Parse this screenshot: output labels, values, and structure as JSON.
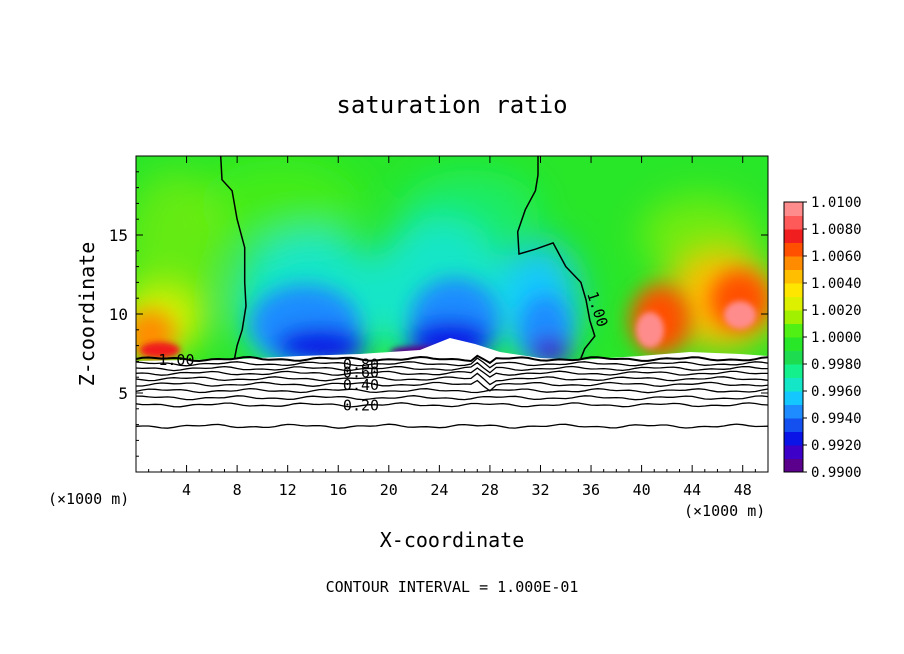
{
  "chart_data": {
    "type": "heatmap",
    "title": "saturation ratio",
    "xlabel": "X-coordinate",
    "ylabel": "Z-coordinate",
    "x_unit_left": "(×1000 m)",
    "x_unit_right": "(×1000 m)",
    "footer": "CONTOUR INTERVAL = 1.000E-01",
    "xlim": [
      0,
      50
    ],
    "ylim": [
      0,
      20
    ],
    "x_ticks": [
      4,
      8,
      12,
      16,
      20,
      24,
      28,
      32,
      36,
      40,
      44,
      48
    ],
    "y_ticks": [
      5,
      10,
      15
    ],
    "colorbar": {
      "range": [
        0.99,
        1.01
      ],
      "levels": [
        0.99,
        0.991,
        0.992,
        0.993,
        0.994,
        0.995,
        0.996,
        0.997,
        0.998,
        0.999,
        1.0,
        1.001,
        1.002,
        1.003,
        1.004,
        1.005,
        1.006,
        1.007,
        1.008,
        1.009,
        1.01
      ],
      "labels": [
        "0.9900",
        "0.9920",
        "0.9940",
        "0.9960",
        "0.9980",
        "1.0000",
        "1.0020",
        "1.0040",
        "1.0060",
        "1.0080",
        "1.0100"
      ],
      "colors": [
        "#5a008c",
        "#3c00c8",
        "#0a14e6",
        "#1450f0",
        "#1e8cff",
        "#14c8ff",
        "#14e6c8",
        "#14f08c",
        "#1edc50",
        "#28e628",
        "#50f014",
        "#a0f000",
        "#dcf000",
        "#ffe600",
        "#ffbe00",
        "#ff8c00",
        "#ff5000",
        "#f01e1e",
        "#ff5a5a",
        "#ff8c8c"
      ]
    },
    "contour_labels": [
      {
        "text": "1.00",
        "x": 3.2,
        "z": 7.1
      },
      {
        "text": "0.80",
        "x": 17.8,
        "z": 6.8
      },
      {
        "text": "0.60",
        "x": 17.8,
        "z": 6.3
      },
      {
        "text": "0.40",
        "x": 17.8,
        "z": 5.5
      },
      {
        "text": "0.20",
        "x": 17.8,
        "z": 4.2
      },
      {
        "text": "1.00",
        "x": 36.5,
        "z": 10.3
      }
    ],
    "contour_lines": [
      {
        "level": 1.0,
        "points": [
          [
            6.7,
            20
          ],
          [
            6.8,
            18.5
          ],
          [
            7.6,
            17.8
          ],
          [
            8.0,
            16.0
          ],
          [
            8.6,
            14.2
          ],
          [
            8.6,
            12.0
          ],
          [
            8.7,
            10.5
          ],
          [
            8.4,
            9.0
          ],
          [
            8.0,
            8.0
          ],
          [
            7.8,
            7.2
          ]
        ]
      },
      {
        "level": 1.0,
        "points": [
          [
            31.8,
            20
          ],
          [
            31.8,
            18.8
          ],
          [
            31.6,
            17.8
          ],
          [
            30.8,
            16.6
          ],
          [
            30.2,
            15.2
          ],
          [
            30.3,
            13.8
          ],
          [
            31.6,
            14.1
          ],
          [
            33.0,
            14.5
          ],
          [
            34.0,
            13.0
          ],
          [
            35.2,
            12.0
          ],
          [
            35.6,
            10.9
          ],
          [
            35.9,
            9.6
          ],
          [
            36.3,
            8.6
          ],
          [
            35.5,
            7.8
          ],
          [
            35.2,
            7.2
          ]
        ]
      }
    ],
    "layer_lines": [
      {
        "level": 1.0,
        "z": 7.15
      },
      {
        "level": 0.9,
        "z": 6.85
      },
      {
        "level": 0.8,
        "z": 6.55
      },
      {
        "level": 0.7,
        "z": 6.25
      },
      {
        "level": 0.6,
        "z": 5.9
      },
      {
        "level": 0.5,
        "z": 5.55
      },
      {
        "level": 0.4,
        "z": 5.15
      },
      {
        "level": 0.3,
        "z": 4.7
      },
      {
        "level": 0.2,
        "z": 4.25
      },
      {
        "level": 0.1,
        "z": 2.9
      }
    ]
  }
}
